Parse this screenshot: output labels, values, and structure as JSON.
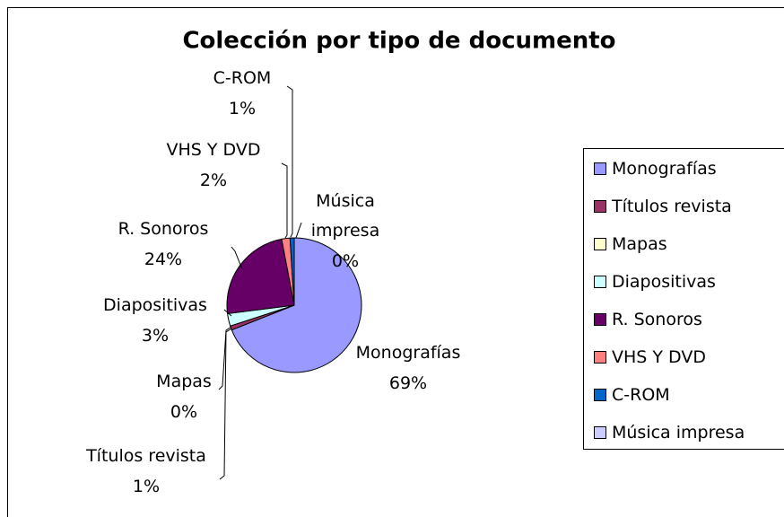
{
  "chart_data": {
    "type": "pie",
    "title": "Colección por tipo de documento",
    "categories": [
      "Monografías",
      "Títulos revista",
      "Mapas",
      "Diapositivas",
      "R. Sonoros",
      "VHS Y DVD",
      "C-ROM",
      "Música impresa"
    ],
    "values": [
      69,
      1,
      0,
      3,
      24,
      2,
      1,
      0
    ],
    "value_labels": [
      "69%",
      "1%",
      "0%",
      "3%",
      "24%",
      "2%",
      "1%",
      "0%"
    ],
    "colors": [
      "#9999ff",
      "#993366",
      "#ffffcc",
      "#ccffff",
      "#660066",
      "#ff8080",
      "#0066cc",
      "#ccccff"
    ],
    "legend": "right"
  }
}
